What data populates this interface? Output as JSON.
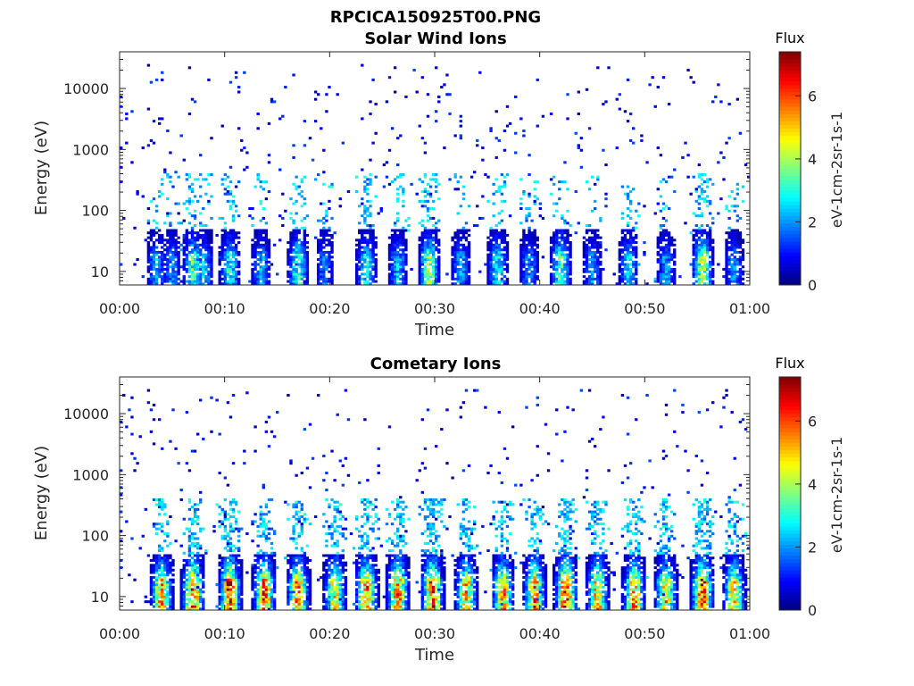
{
  "figure": {
    "title": "RPCICA150925T00.PNG"
  },
  "chart_data": [
    {
      "type": "heatmap",
      "title": "Solar Wind Ions",
      "xlabel": "Time",
      "ylabel": "Energy (eV)",
      "x_tick_labels": [
        "00:00",
        "00:10",
        "00:20",
        "00:30",
        "00:40",
        "00:50",
        "01:00"
      ],
      "x_ticks_minutes": [
        0,
        10,
        20,
        30,
        40,
        50,
        60
      ],
      "xlim_minutes": [
        0,
        60
      ],
      "y_scale": "log",
      "y_ticks": [
        10,
        100,
        1000,
        10000
      ],
      "y_tick_labels": [
        "10",
        "100",
        "1000",
        "10000"
      ],
      "ylim": [
        6,
        40000
      ],
      "colorbar": {
        "title": "Flux",
        "label": "eV-1cm-2sr-1s-1",
        "ticks": [
          0,
          2,
          4,
          6
        ],
        "tick_labels": [
          "0",
          "2",
          "4",
          "6"
        ],
        "range": [
          0,
          7.4
        ],
        "colormap": "jet"
      },
      "bursts": [
        {
          "t": 3.5,
          "v": 2.3
        },
        {
          "t": 5.0,
          "v": 2.2
        },
        {
          "t": 7.0,
          "v": 3.6
        },
        {
          "t": 8.0,
          "v": 2.6
        },
        {
          "t": 10.5,
          "v": 3.3
        },
        {
          "t": 13.5,
          "v": 2.4
        },
        {
          "t": 17.0,
          "v": 3.6
        },
        {
          "t": 19.5,
          "v": 2.0
        },
        {
          "t": 23.5,
          "v": 3.0
        },
        {
          "t": 26.5,
          "v": 2.6
        },
        {
          "t": 29.5,
          "v": 4.3
        },
        {
          "t": 32.5,
          "v": 2.4
        },
        {
          "t": 36.0,
          "v": 3.1
        },
        {
          "t": 39.0,
          "v": 2.2
        },
        {
          "t": 42.0,
          "v": 3.8
        },
        {
          "t": 45.0,
          "v": 2.2
        },
        {
          "t": 48.5,
          "v": 2.8
        },
        {
          "t": 52.0,
          "v": 2.4
        },
        {
          "t": 55.5,
          "v": 4.6
        },
        {
          "t": 58.5,
          "v": 2.2
        }
      ]
    },
    {
      "type": "heatmap",
      "title": "Cometary Ions",
      "xlabel": "Time",
      "ylabel": "Energy (eV)",
      "x_tick_labels": [
        "00:00",
        "00:10",
        "00:20",
        "00:30",
        "00:40",
        "00:50",
        "01:00"
      ],
      "x_ticks_minutes": [
        0,
        10,
        20,
        30,
        40,
        50,
        60
      ],
      "xlim_minutes": [
        0,
        60
      ],
      "y_scale": "log",
      "y_ticks": [
        10,
        100,
        1000,
        10000
      ],
      "y_tick_labels": [
        "10",
        "100",
        "1000",
        "10000"
      ],
      "ylim": [
        6,
        40000
      ],
      "colorbar": {
        "title": "Flux",
        "label": "eV-1cm-2sr-1s-1",
        "ticks": [
          0,
          2,
          4,
          6
        ],
        "tick_labels": [
          "0",
          "2",
          "4",
          "6"
        ],
        "range": [
          0,
          7.4
        ],
        "colormap": "jet"
      },
      "bursts": [
        {
          "t": 4.0,
          "v": 5.8
        },
        {
          "t": 7.0,
          "v": 6.6
        },
        {
          "t": 10.5,
          "v": 7.2
        },
        {
          "t": 13.8,
          "v": 6.4
        },
        {
          "t": 17.0,
          "v": 6.0
        },
        {
          "t": 20.5,
          "v": 5.2
        },
        {
          "t": 23.5,
          "v": 6.4
        },
        {
          "t": 26.5,
          "v": 6.2
        },
        {
          "t": 29.8,
          "v": 7.0
        },
        {
          "t": 33.0,
          "v": 5.6
        },
        {
          "t": 36.5,
          "v": 6.0
        },
        {
          "t": 39.5,
          "v": 6.2
        },
        {
          "t": 42.5,
          "v": 7.0
        },
        {
          "t": 45.5,
          "v": 5.8
        },
        {
          "t": 49.0,
          "v": 6.0
        },
        {
          "t": 52.0,
          "v": 5.6
        },
        {
          "t": 55.5,
          "v": 7.2
        },
        {
          "t": 58.5,
          "v": 5.4
        }
      ]
    }
  ]
}
